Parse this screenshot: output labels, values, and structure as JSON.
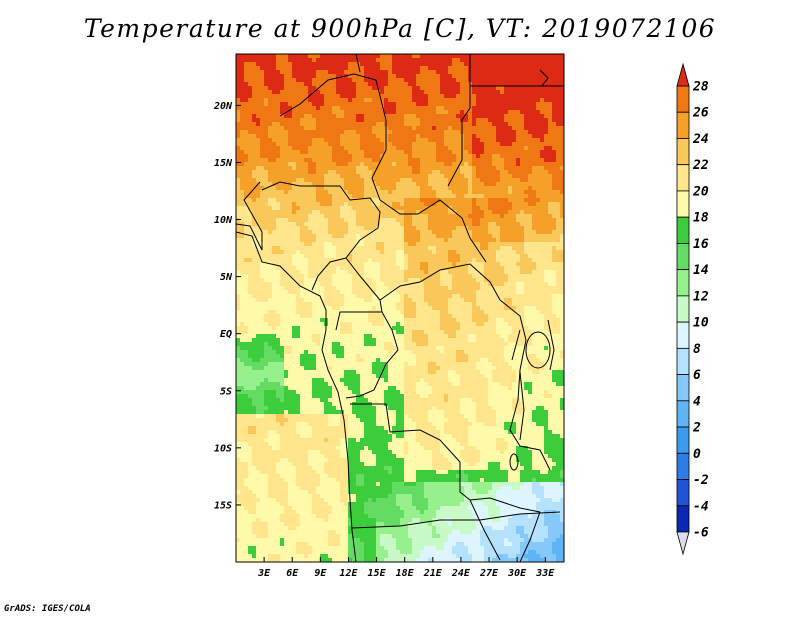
{
  "title": "Temperature at 900hPa [C], VT: 2019072106",
  "footer": "GrADS: IGES/COLA",
  "chart_data": {
    "type": "heatmap",
    "variable": "Temperature at 900hPa",
    "units": "C",
    "valid_time": "2019072106",
    "lon_range": [
      0,
      35
    ],
    "lat_range": [
      -20,
      24.5
    ],
    "lon_ticks": [
      "3E",
      "6E",
      "9E",
      "12E",
      "15E",
      "18E",
      "21E",
      "24E",
      "27E",
      "30E",
      "33E"
    ],
    "lon_tick_values": [
      3,
      6,
      9,
      12,
      15,
      18,
      21,
      24,
      27,
      30,
      33
    ],
    "lat_ticks": [
      "20N",
      "15N",
      "10N",
      "5N",
      "EQ",
      "5S",
      "10S",
      "15S"
    ],
    "lat_tick_values": [
      20,
      15,
      10,
      5,
      0,
      -5,
      -10,
      -15
    ],
    "colorbar": {
      "levels": [
        -6,
        -4,
        -2,
        0,
        2,
        4,
        6,
        8,
        10,
        12,
        14,
        16,
        18,
        20,
        22,
        24,
        26,
        28
      ],
      "colors": [
        "#1b0c80",
        "#0a28b4",
        "#1e55d2",
        "#2d7de6",
        "#3c9bf0",
        "#5fb4f5",
        "#87c8fa",
        "#b4e1fc",
        "#dcf5ff",
        "#c8fac8",
        "#96f08c",
        "#64dc64",
        "#3ccc3c",
        "#fffaaa",
        "#ffe68c",
        "#fac85a",
        "#f5a028",
        "#f07814",
        "#e65014",
        "#dc2a14"
      ],
      "labels": [
        "28",
        "26",
        "24",
        "22",
        "20",
        "18",
        "16",
        "14",
        "12",
        "10",
        "8",
        "6",
        "4",
        "2",
        "0",
        "-2",
        "-4",
        "-6"
      ],
      "over_color": "#dc2a14",
      "under_color": "#dcdcf0"
    },
    "field_description": "Warmest (26-28+) in the Sahara/Sahel north of ~15N, 22-26 across the Sahel and central Africa, 16-22 over the Gulf of Guinea coast and equatorial Atlantic, 12-16 over the southern Atlantic near 5S and over southern Angola/Zambia/Zimbabwe highlands, 8-12 locally in the southeast corner."
  }
}
